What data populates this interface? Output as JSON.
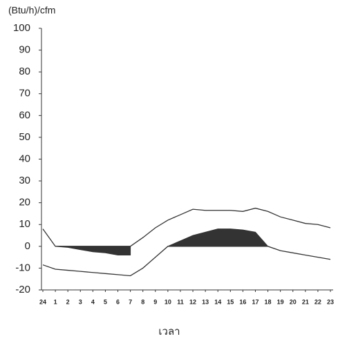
{
  "chart_data": {
    "type": "line",
    "y_label": "(Btu/h)/cfm",
    "x_label": "เวลา",
    "categories": [
      "24",
      "1",
      "2",
      "3",
      "4",
      "5",
      "6",
      "7",
      "8",
      "9",
      "10",
      "11",
      "12",
      "13",
      "14",
      "15",
      "16",
      "17",
      "18",
      "19",
      "20",
      "21",
      "22",
      "23"
    ],
    "series": [
      {
        "color": "#333333",
        "values": [
          8,
          0,
          0,
          0,
          0,
          0,
          0,
          0,
          4,
          8.5,
          12,
          14.5,
          17,
          16.5,
          16.5,
          16.5,
          16,
          17.5,
          16,
          13.5,
          12,
          10.5,
          10,
          8.5
        ]
      },
      {
        "color": "#333333",
        "values": [
          -8.5,
          -10.5,
          -11,
          -11.5,
          -12,
          -12.5,
          -13,
          -13.5,
          -10,
          -5,
          0,
          0,
          0,
          0,
          0,
          0,
          0,
          0,
          0,
          -2,
          -3,
          -4,
          -5,
          -6
        ]
      },
      {
        "color": "#333333",
        "area": true,
        "values": [
          null,
          0,
          -0.5,
          -1.5,
          -2.5,
          -3,
          -4,
          -4,
          null,
          null,
          0,
          2.5,
          5,
          6.5,
          8,
          8,
          7.5,
          6.5,
          0,
          null,
          null,
          null,
          null,
          null
        ]
      }
    ],
    "ylim": [
      -20,
      100
    ],
    "yticks": [
      -20,
      -10,
      0,
      10,
      20,
      30,
      40,
      50,
      60,
      70,
      80,
      90,
      100
    ]
  }
}
